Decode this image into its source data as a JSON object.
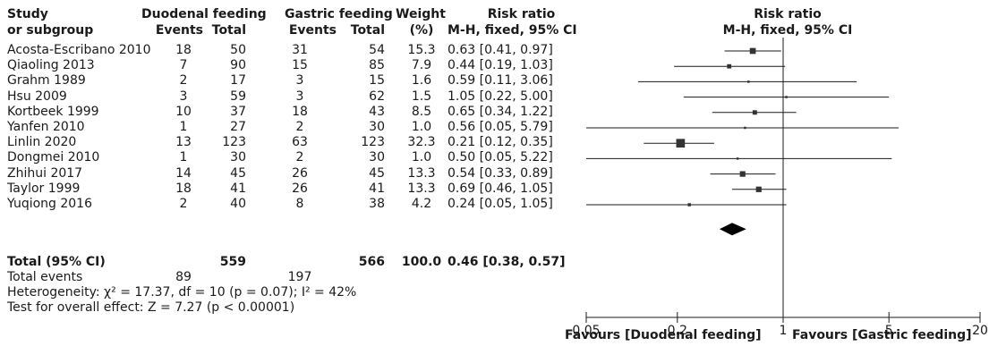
{
  "header": {
    "study": "Study",
    "subgroup": "or subgroup",
    "duodenal": "Duodenal feeding",
    "gastric": "Gastric feeding",
    "events": "Events",
    "total": "Total",
    "weight": "Weight",
    "weight_unit": "(%)",
    "rr": "Risk ratio",
    "method": "M-H, fixed, 95% CI",
    "plot_title": "Risk ratio",
    "plot_method": "M-H, fixed, 95% CI"
  },
  "overall": {
    "label": "Total (95% CI)",
    "d_total": "559",
    "g_total": "566",
    "weight": "100.0",
    "rr": "0.46 [0.38, 0.57]",
    "events_label": "Total events",
    "d_events": "89",
    "g_events": "197"
  },
  "footer": {
    "heterogeneity": "Heterogeneity: χ² = 17.37, df = 10 (p = 0.07); I² = 42%",
    "overall_effect": "Test for overall effect: Z = 7.27 (p < 0.00001)",
    "favours_left": "Favours [Duodenal feeding]",
    "favours_right": "Favours [Gastric feeding]"
  },
  "chart_data": {
    "type": "forest",
    "scale": "log",
    "xlim": [
      0.05,
      20
    ],
    "ticks": [
      "0.05",
      "0.2",
      "1",
      "5",
      "20"
    ],
    "tick_values": [
      0.05,
      0.2,
      1,
      5,
      20
    ],
    "studies": [
      {
        "name": "Acosta-Escribano 2010",
        "d_events": "18",
        "d_total": "50",
        "g_events": "31",
        "g_total": "54",
        "weight": "15.3",
        "rr_text": "0.63 [0.41, 0.97]",
        "rr": 0.63,
        "lo": 0.41,
        "hi": 0.97
      },
      {
        "name": "Qiaoling 2013",
        "d_events": "7",
        "d_total": "90",
        "g_events": "15",
        "g_total": "85",
        "weight": "7.9",
        "rr_text": "0.44 [0.19, 1.03]",
        "rr": 0.44,
        "lo": 0.19,
        "hi": 1.03
      },
      {
        "name": "Grahm 1989",
        "d_events": "2",
        "d_total": "17",
        "g_events": "3",
        "g_total": "15",
        "weight": "1.6",
        "rr_text": "0.59 [0.11, 3.06]",
        "rr": 0.59,
        "lo": 0.11,
        "hi": 3.06
      },
      {
        "name": "Hsu 2009",
        "d_events": "3",
        "d_total": "59",
        "g_events": "3",
        "g_total": "62",
        "weight": "1.5",
        "rr_text": "1.05 [0.22, 5.00]",
        "rr": 1.05,
        "lo": 0.22,
        "hi": 5.0
      },
      {
        "name": "Kortbeek 1999",
        "d_events": "10",
        "d_total": "37",
        "g_events": "18",
        "g_total": "43",
        "weight": "8.5",
        "rr_text": "0.65 [0.34, 1.22]",
        "rr": 0.65,
        "lo": 0.34,
        "hi": 1.22
      },
      {
        "name": "Yanfen 2010",
        "d_events": "1",
        "d_total": "27",
        "g_events": "2",
        "g_total": "30",
        "weight": "1.0",
        "rr_text": "0.56 [0.05, 5.79]",
        "rr": 0.56,
        "lo": 0.05,
        "hi": 5.79
      },
      {
        "name": "Linlin 2020",
        "d_events": "13",
        "d_total": "123",
        "g_events": "63",
        "g_total": "123",
        "weight": "32.3",
        "rr_text": "0.21 [0.12, 0.35]",
        "rr": 0.21,
        "lo": 0.12,
        "hi": 0.35
      },
      {
        "name": "Dongmei 2010",
        "d_events": "1",
        "d_total": "30",
        "g_events": "2",
        "g_total": "30",
        "weight": "1.0",
        "rr_text": "0.50 [0.05, 5.22]",
        "rr": 0.5,
        "lo": 0.05,
        "hi": 5.22
      },
      {
        "name": "Zhihui 2017",
        "d_events": "14",
        "d_total": "45",
        "g_events": "26",
        "g_total": "45",
        "weight": "13.3",
        "rr_text": "0.54 [0.33, 0.89]",
        "rr": 0.54,
        "lo": 0.33,
        "hi": 0.89
      },
      {
        "name": "Taylor 1999",
        "d_events": "18",
        "d_total": "41",
        "g_events": "26",
        "g_total": "41",
        "weight": "13.3",
        "rr_text": "0.69 [0.46, 1.05]",
        "rr": 0.69,
        "lo": 0.46,
        "hi": 1.05
      },
      {
        "name": "Yuqiong 2016",
        "d_events": "2",
        "d_total": "40",
        "g_events": "8",
        "g_total": "38",
        "weight": "4.2",
        "rr_text": "0.24 [0.05, 1.05]",
        "rr": 0.24,
        "lo": 0.05,
        "hi": 1.05
      }
    ],
    "pooled": {
      "rr": 0.46,
      "lo": 0.38,
      "hi": 0.57
    },
    "colors": {
      "ink": "#1a1a1a",
      "marker": "#333333"
    }
  }
}
